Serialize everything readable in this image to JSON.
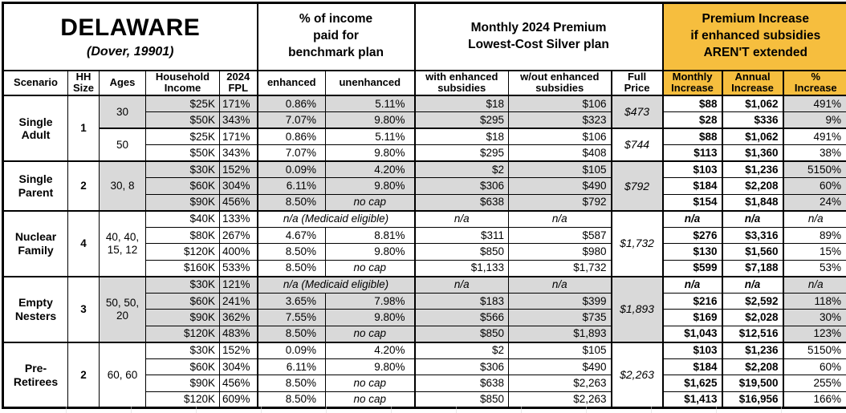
{
  "colors": {
    "accent_gold": "#F6BE3E",
    "shaded_gray": "#D9D9D9",
    "border_black": "#000000"
  },
  "chart_data": {
    "type": "table",
    "title": "DELAWARE",
    "subtitle": "(Dover, 19901)",
    "header_groups": {
      "pct_income": "% of income\npaid for\nbenchmark plan",
      "premium": "Monthly 2024 Premium\nLowest-Cost Silver plan",
      "increase": "Premium Increase\nif enhanced subsidies\nAREN'T extended"
    },
    "columns": [
      "Scenario",
      "HH\nSize",
      "Ages",
      "Household\nIncome",
      "2024\nFPL",
      "enhanced",
      "unenhanced",
      "with enhanced\nsubsidies",
      "w/out enhanced\nsubsidies",
      "Full\nPrice",
      "Monthly\nIncrease",
      "Annual\nIncrease",
      "%\nIncrease"
    ],
    "groups": [
      {
        "scenario": "Single\nAdult",
        "hh": "1",
        "subgroups": [
          {
            "ages": "30",
            "shaded": true,
            "full_price": "$473",
            "rows": [
              {
                "income": "$25K",
                "fpl": "171%",
                "enhanced": "0.86%",
                "unenhanced": "5.11%",
                "with_sub": "$18",
                "wout_sub": "$106",
                "monthly": "$88",
                "annual": "$1,062",
                "pct": "491%"
              },
              {
                "income": "$50K",
                "fpl": "343%",
                "enhanced": "7.07%",
                "unenhanced": "9.80%",
                "with_sub": "$295",
                "wout_sub": "$323",
                "monthly": "$28",
                "annual": "$336",
                "pct": "9%"
              }
            ]
          },
          {
            "ages": "50",
            "shaded": false,
            "full_price": "$744",
            "rows": [
              {
                "income": "$25K",
                "fpl": "171%",
                "enhanced": "0.86%",
                "unenhanced": "5.11%",
                "with_sub": "$18",
                "wout_sub": "$106",
                "monthly": "$88",
                "annual": "$1,062",
                "pct": "491%"
              },
              {
                "income": "$50K",
                "fpl": "343%",
                "enhanced": "7.07%",
                "unenhanced": "9.80%",
                "with_sub": "$295",
                "wout_sub": "$408",
                "monthly": "$113",
                "annual": "$1,360",
                "pct": "38%"
              }
            ]
          }
        ]
      },
      {
        "scenario": "Single\nParent",
        "hh": "2",
        "subgroups": [
          {
            "ages": "30, 8",
            "shaded": true,
            "full_price": "$792",
            "rows": [
              {
                "income": "$30K",
                "fpl": "152%",
                "enhanced": "0.09%",
                "unenhanced": "4.20%",
                "with_sub": "$2",
                "wout_sub": "$105",
                "monthly": "$103",
                "annual": "$1,236",
                "pct": "5150%"
              },
              {
                "income": "$60K",
                "fpl": "304%",
                "enhanced": "6.11%",
                "unenhanced": "9.80%",
                "with_sub": "$306",
                "wout_sub": "$490",
                "monthly": "$184",
                "annual": "$2,208",
                "pct": "60%"
              },
              {
                "income": "$90K",
                "fpl": "456%",
                "enhanced": "8.50%",
                "unenhanced": "no cap",
                "with_sub": "$638",
                "wout_sub": "$792",
                "monthly": "$154",
                "annual": "$1,848",
                "pct": "24%"
              }
            ]
          }
        ]
      },
      {
        "scenario": "Nuclear\nFamily",
        "hh": "4",
        "subgroups": [
          {
            "ages": "40, 40,\n15, 12",
            "shaded": false,
            "full_price": "$1,732",
            "rows": [
              {
                "income": "$40K",
                "fpl": "133%",
                "medicaid": "n/a (Medicaid eligible)",
                "with_sub": "n/a",
                "wout_sub": "n/a",
                "monthly": "n/a",
                "annual": "n/a",
                "pct": "n/a"
              },
              {
                "income": "$80K",
                "fpl": "267%",
                "enhanced": "4.67%",
                "unenhanced": "8.81%",
                "with_sub": "$311",
                "wout_sub": "$587",
                "monthly": "$276",
                "annual": "$3,316",
                "pct": "89%"
              },
              {
                "income": "$120K",
                "fpl": "400%",
                "enhanced": "8.50%",
                "unenhanced": "9.80%",
                "with_sub": "$850",
                "wout_sub": "$980",
                "monthly": "$130",
                "annual": "$1,560",
                "pct": "15%"
              },
              {
                "income": "$160K",
                "fpl": "533%",
                "enhanced": "8.50%",
                "unenhanced": "no cap",
                "with_sub": "$1,133",
                "wout_sub": "$1,732",
                "monthly": "$599",
                "annual": "$7,188",
                "pct": "53%"
              }
            ]
          }
        ]
      },
      {
        "scenario": "Empty\nNesters",
        "hh": "3",
        "subgroups": [
          {
            "ages": "50, 50,\n20",
            "shaded": true,
            "full_price": "$1,893",
            "rows": [
              {
                "income": "$30K",
                "fpl": "121%",
                "medicaid": "n/a (Medicaid eligible)",
                "with_sub": "n/a",
                "wout_sub": "n/a",
                "monthly": "n/a",
                "annual": "n/a",
                "pct": "n/a"
              },
              {
                "income": "$60K",
                "fpl": "241%",
                "enhanced": "3.65%",
                "unenhanced": "7.98%",
                "with_sub": "$183",
                "wout_sub": "$399",
                "monthly": "$216",
                "annual": "$2,592",
                "pct": "118%"
              },
              {
                "income": "$90K",
                "fpl": "362%",
                "enhanced": "7.55%",
                "unenhanced": "9.80%",
                "with_sub": "$566",
                "wout_sub": "$735",
                "monthly": "$169",
                "annual": "$2,028",
                "pct": "30%"
              },
              {
                "income": "$120K",
                "fpl": "483%",
                "enhanced": "8.50%",
                "unenhanced": "no cap",
                "with_sub": "$850",
                "wout_sub": "$1,893",
                "monthly": "$1,043",
                "annual": "$12,516",
                "pct": "123%"
              }
            ]
          }
        ]
      },
      {
        "scenario": "Pre-\nRetirees",
        "hh": "2",
        "subgroups": [
          {
            "ages": "60, 60",
            "shaded": false,
            "full_price": "$2,263",
            "rows": [
              {
                "income": "$30K",
                "fpl": "152%",
                "enhanced": "0.09%",
                "unenhanced": "4.20%",
                "with_sub": "$2",
                "wout_sub": "$105",
                "monthly": "$103",
                "annual": "$1,236",
                "pct": "5150%"
              },
              {
                "income": "$60K",
                "fpl": "304%",
                "enhanced": "6.11%",
                "unenhanced": "9.80%",
                "with_sub": "$306",
                "wout_sub": "$490",
                "monthly": "$184",
                "annual": "$2,208",
                "pct": "60%"
              },
              {
                "income": "$90K",
                "fpl": "456%",
                "enhanced": "8.50%",
                "unenhanced": "no cap",
                "with_sub": "$638",
                "wout_sub": "$2,263",
                "monthly": "$1,625",
                "annual": "$19,500",
                "pct": "255%"
              },
              {
                "income": "$120K",
                "fpl": "609%",
                "enhanced": "8.50%",
                "unenhanced": "no cap",
                "with_sub": "$850",
                "wout_sub": "$2,263",
                "monthly": "$1,413",
                "annual": "$16,956",
                "pct": "166%"
              }
            ]
          }
        ]
      }
    ]
  }
}
